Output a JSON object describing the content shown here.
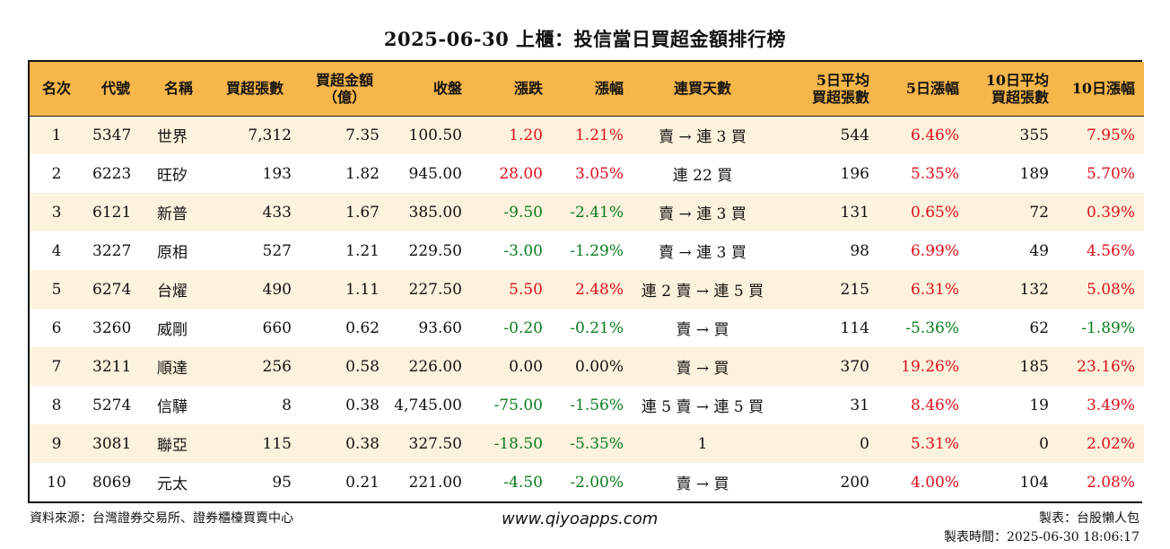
{
  "title": "2025-06-30 上櫃：投信當日買超金額排行榜",
  "headers": {
    "rank": "名次",
    "code": "代號",
    "name": "名稱",
    "net_buy_shares": "買超張數",
    "net_buy_amount_1": "買超金額",
    "net_buy_amount_2": "（億）",
    "close": "收盤",
    "change": "漲跌",
    "change_pct": "漲幅",
    "streak": "連買天數",
    "avg5_1": "5日平均",
    "avg5_2": "買超張數",
    "pct5": "5日漲幅",
    "avg10_1": "10日平均",
    "avg10_2": "買超張數",
    "pct10": "10日漲幅"
  },
  "rows": [
    {
      "rank": "1",
      "code": "5347",
      "name": "世界",
      "shares": "7,312",
      "amount": "7.35",
      "close": "100.50",
      "change": "1.20",
      "pct": "1.21%",
      "streak": "賣 → 連 3 買",
      "avg5": "544",
      "pct5": "6.46%",
      "avg10": "355",
      "pct10": "7.95%",
      "dir": "up",
      "dir5": "up",
      "dir10": "up"
    },
    {
      "rank": "2",
      "code": "6223",
      "name": "旺矽",
      "shares": "193",
      "amount": "1.82",
      "close": "945.00",
      "change": "28.00",
      "pct": "3.05%",
      "streak": "連 22 買",
      "avg5": "196",
      "pct5": "5.35%",
      "avg10": "189",
      "pct10": "5.70%",
      "dir": "up",
      "dir5": "up",
      "dir10": "up"
    },
    {
      "rank": "3",
      "code": "6121",
      "name": "新普",
      "shares": "433",
      "amount": "1.67",
      "close": "385.00",
      "change": "-9.50",
      "pct": "-2.41%",
      "streak": "賣 → 連 3 買",
      "avg5": "131",
      "pct5": "0.65%",
      "avg10": "72",
      "pct10": "0.39%",
      "dir": "down",
      "dir5": "up",
      "dir10": "up"
    },
    {
      "rank": "4",
      "code": "3227",
      "name": "原相",
      "shares": "527",
      "amount": "1.21",
      "close": "229.50",
      "change": "-3.00",
      "pct": "-1.29%",
      "streak": "賣 → 連 3 買",
      "avg5": "98",
      "pct5": "6.99%",
      "avg10": "49",
      "pct10": "4.56%",
      "dir": "down",
      "dir5": "up",
      "dir10": "up"
    },
    {
      "rank": "5",
      "code": "6274",
      "name": "台燿",
      "shares": "490",
      "amount": "1.11",
      "close": "227.50",
      "change": "5.50",
      "pct": "2.48%",
      "streak": "連 2 賣 → 連 5 買",
      "avg5": "215",
      "pct5": "6.31%",
      "avg10": "132",
      "pct10": "5.08%",
      "dir": "up",
      "dir5": "up",
      "dir10": "up"
    },
    {
      "rank": "6",
      "code": "3260",
      "name": "威剛",
      "shares": "660",
      "amount": "0.62",
      "close": "93.60",
      "change": "-0.20",
      "pct": "-0.21%",
      "streak": "賣 → 買",
      "avg5": "114",
      "pct5": "-5.36%",
      "avg10": "62",
      "pct10": "-1.89%",
      "dir": "down",
      "dir5": "down",
      "dir10": "down"
    },
    {
      "rank": "7",
      "code": "3211",
      "name": "順達",
      "shares": "256",
      "amount": "0.58",
      "close": "226.00",
      "change": "0.00",
      "pct": "0.00%",
      "streak": "賣 → 買",
      "avg5": "370",
      "pct5": "19.26%",
      "avg10": "185",
      "pct10": "23.16%",
      "dir": "flat",
      "dir5": "up",
      "dir10": "up"
    },
    {
      "rank": "8",
      "code": "5274",
      "name": "信驊",
      "shares": "8",
      "amount": "0.38",
      "close": "4,745.00",
      "change": "-75.00",
      "pct": "-1.56%",
      "streak": "連 5 賣 → 連 5 買",
      "avg5": "31",
      "pct5": "8.46%",
      "avg10": "19",
      "pct10": "3.49%",
      "dir": "down",
      "dir5": "up",
      "dir10": "up"
    },
    {
      "rank": "9",
      "code": "3081",
      "name": "聯亞",
      "shares": "115",
      "amount": "0.38",
      "close": "327.50",
      "change": "-18.50",
      "pct": "-5.35%",
      "streak": "1",
      "avg5": "0",
      "pct5": "5.31%",
      "avg10": "0",
      "pct10": "2.02%",
      "dir": "down",
      "dir5": "up",
      "dir10": "up"
    },
    {
      "rank": "10",
      "code": "8069",
      "name": "元太",
      "shares": "95",
      "amount": "0.21",
      "close": "221.00",
      "change": "-4.50",
      "pct": "-2.00%",
      "streak": "賣 → 買",
      "avg5": "200",
      "pct5": "4.00%",
      "avg10": "104",
      "pct10": "2.08%",
      "dir": "down",
      "dir5": "up",
      "dir10": "up"
    }
  ],
  "footer": {
    "source": "資料來源：台灣證券交易所、證券櫃檯買賣中心",
    "website": "www.qiyoapps.com",
    "maker": "製表：台股懶人包",
    "made_time": "製表時間：2025-06-30 18:06:17"
  },
  "colors": {
    "header_bg": "#f7b64a",
    "stripe_bg": "#fdf2dd",
    "up": "#e0101c",
    "down": "#0a7d1e"
  }
}
